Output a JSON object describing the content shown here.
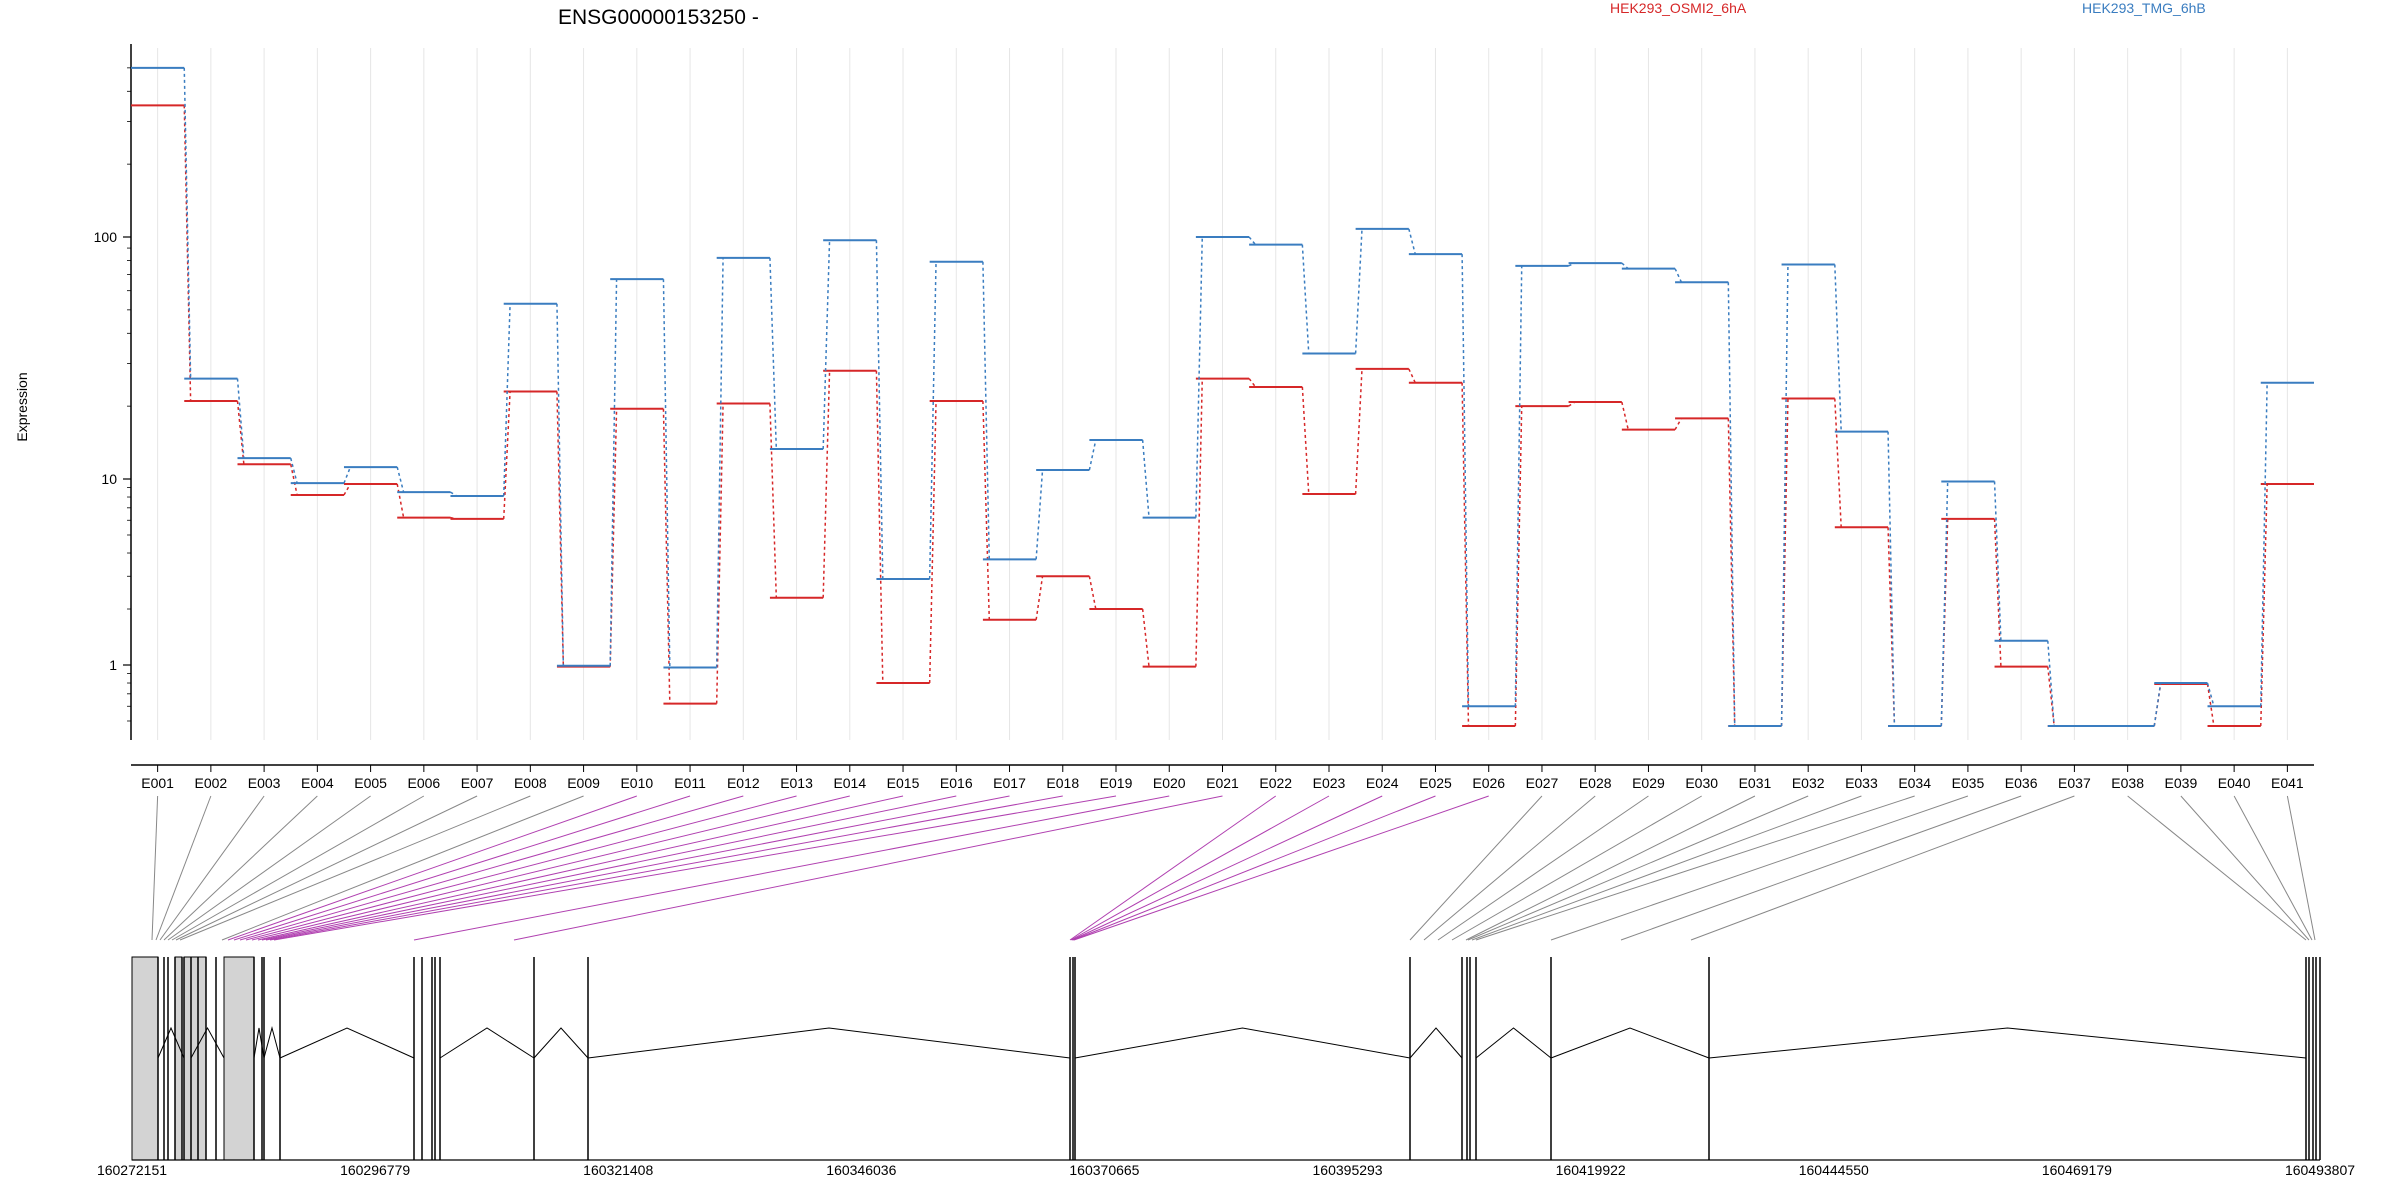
{
  "chart_data": {
    "type": "line",
    "title": "ENSG00000153250 -",
    "ylabel": "Expression",
    "xlabel": "",
    "y_scale": "log",
    "y_ticks": [
      1,
      10,
      100
    ],
    "y_tick_labels": [
      "1",
      "10",
      "100"
    ],
    "ylim": [
      0.5,
      600
    ],
    "grid": "vertical",
    "legend_placement": "top",
    "categories": [
      "E001",
      "E002",
      "E003",
      "E004",
      "E005",
      "E006",
      "E007",
      "E008",
      "E009",
      "E010",
      "E011",
      "E012",
      "E013",
      "E014",
      "E015",
      "E016",
      "E017",
      "E018",
      "E019",
      "E020",
      "E021",
      "E022",
      "E023",
      "E024",
      "E025",
      "E026",
      "E027",
      "E028",
      "E029",
      "E030",
      "E031",
      "E032",
      "E033",
      "E034",
      "E035",
      "E036",
      "E037",
      "E038",
      "E039",
      "E040",
      "E041"
    ],
    "series": [
      {
        "name": "HEK293_OSMI2_6hA",
        "color": "#d62728",
        "values": [
          350,
          21,
          11.5,
          8.2,
          9.4,
          6.2,
          6.1,
          23,
          0.98,
          19.5,
          0.62,
          20.5,
          2.3,
          28,
          0.8,
          21,
          1.75,
          3.0,
          2.0,
          0.98,
          26,
          24,
          8.3,
          28.5,
          25,
          0.47,
          20,
          20.8,
          16,
          17.8,
          0.47,
          21.5,
          5.5,
          0.47,
          6.1,
          0.98,
          0.47,
          0.47,
          0.79,
          0.47,
          9.4
        ]
      },
      {
        "name": "HEK293_TMG_6hB",
        "color": "#3a7dc0",
        "values": [
          500,
          26,
          12.2,
          9.5,
          11.2,
          8.5,
          8.1,
          53,
          0.99,
          67,
          0.97,
          82,
          13.3,
          97,
          2.9,
          79,
          3.7,
          10.9,
          14.5,
          6.2,
          100,
          93,
          33,
          108,
          85,
          0.6,
          76,
          78,
          74,
          65,
          0.47,
          77,
          15.7,
          0.47,
          9.7,
          1.35,
          0.47,
          0.47,
          0.8,
          0.6,
          25
        ]
      }
    ],
    "genome_axis": {
      "tick_labels": [
        "160272151",
        "160296779",
        "160321408",
        "160346036",
        "160370665",
        "160395293",
        "160419922",
        "160444550",
        "160469179",
        "160493807"
      ],
      "range": [
        160272151,
        160493807
      ]
    }
  }
}
